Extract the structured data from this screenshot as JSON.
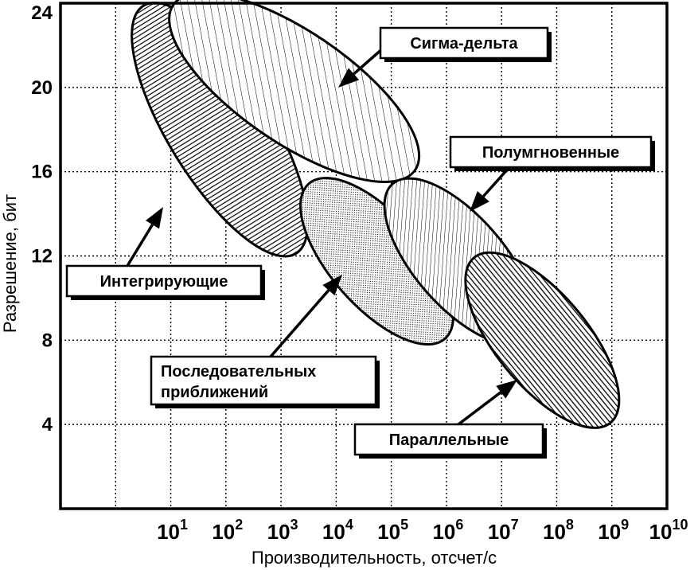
{
  "chart_data": {
    "type": "scatter",
    "title": "",
    "xlabel": "Производительность, отсчет/с",
    "ylabel": "Разрешение, бит",
    "x_scale": "log",
    "xlim": [
      0.1,
      10000000000
    ],
    "ylim": [
      0,
      24
    ],
    "x_ticks": [
      {
        "exp": "1"
      },
      {
        "exp": "2"
      },
      {
        "exp": "3"
      },
      {
        "exp": "4"
      },
      {
        "exp": "5"
      },
      {
        "exp": "6"
      },
      {
        "exp": "7"
      },
      {
        "exp": "8"
      },
      {
        "exp": "9"
      },
      {
        "exp": "10"
      }
    ],
    "y_ticks": [
      "4",
      "8",
      "12",
      "16",
      "20",
      "24"
    ],
    "grid": true,
    "series": [
      {
        "name": "Интегрирующие",
        "pattern": "vertical-hatch",
        "x_range": [
          3,
          2000
        ],
        "y_range": [
          12,
          24
        ]
      },
      {
        "name": "Сигма-дельта",
        "pattern": "diagonal-hatch",
        "x_range": [
          10,
          300000
        ],
        "y_range": [
          16,
          24
        ]
      },
      {
        "name": "Последовательных приближений",
        "pattern": "dots",
        "x_range": [
          3000,
          1000000
        ],
        "y_range": [
          8,
          15.5
        ]
      },
      {
        "name": "Полумгновенные",
        "pattern": "diagonal-hatch",
        "x_range": [
          100000,
          30000000
        ],
        "y_range": [
          8,
          15.5
        ]
      },
      {
        "name": "Параллельные",
        "pattern": "horizontal-hatch",
        "x_range": [
          3000000,
          1000000000
        ],
        "y_range": [
          4,
          12
        ]
      }
    ],
    "annotations": [
      {
        "text": "Сигма-дельта"
      },
      {
        "text": "Полумгновенные"
      },
      {
        "text": "Интегрирующие"
      },
      {
        "text": "Последовательных приближений"
      },
      {
        "text": "Параллельные"
      }
    ]
  }
}
